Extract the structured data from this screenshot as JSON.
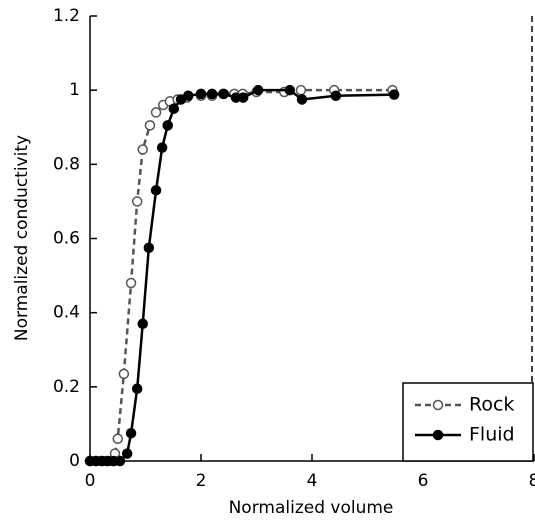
{
  "chart_data": {
    "type": "line",
    "xlabel": "Normalized volume",
    "ylabel": "Normalized conductivity",
    "xlim": [
      0,
      8
    ],
    "xticks": [
      0,
      2,
      4,
      6,
      8
    ],
    "ylim": [
      0,
      1.2
    ],
    "yticks": [
      0,
      0.2,
      0.4,
      0.6,
      0.8,
      1,
      1.2
    ],
    "legend": "lower right",
    "series": [
      {
        "name": "Rock",
        "color": "#555555",
        "line_style": "dashed",
        "marker": "open",
        "x": [
          0,
          0.1,
          0.2,
          0.3,
          0.4,
          0.45,
          0.5,
          0.61,
          0.74,
          0.85,
          0.95,
          1.08,
          1.19,
          1.32,
          1.44,
          1.58,
          1.75,
          2.0,
          2.2,
          2.4,
          2.6,
          2.75,
          3.0,
          3.5,
          3.8,
          4.4,
          5.45
        ],
        "values": [
          0,
          0,
          0,
          0,
          0,
          0.02,
          0.06,
          0.235,
          0.48,
          0.7,
          0.84,
          0.905,
          0.94,
          0.96,
          0.97,
          0.975,
          0.98,
          0.985,
          0.985,
          0.99,
          0.99,
          0.99,
          0.995,
          0.995,
          1.0,
          1.0,
          1.0
        ]
      },
      {
        "name": "Fluid",
        "color": "#000000",
        "line_style": "solid",
        "marker": "filled",
        "x": [
          0,
          0.11,
          0.22,
          0.32,
          0.43,
          0.54,
          0.67,
          0.74,
          0.85,
          0.95,
          1.06,
          1.19,
          1.3,
          1.4,
          1.51,
          1.64,
          1.77,
          2.0,
          2.2,
          2.41,
          2.63,
          2.76,
          3.03,
          3.6,
          3.82,
          4.43,
          5.48
        ],
        "values": [
          0,
          0,
          0,
          0,
          0,
          0,
          0.02,
          0.075,
          0.195,
          0.37,
          0.575,
          0.73,
          0.845,
          0.905,
          0.95,
          0.975,
          0.985,
          0.99,
          0.99,
          0.99,
          0.98,
          0.98,
          1.0,
          1.0,
          0.975,
          0.985,
          0.988
        ]
      }
    ]
  }
}
